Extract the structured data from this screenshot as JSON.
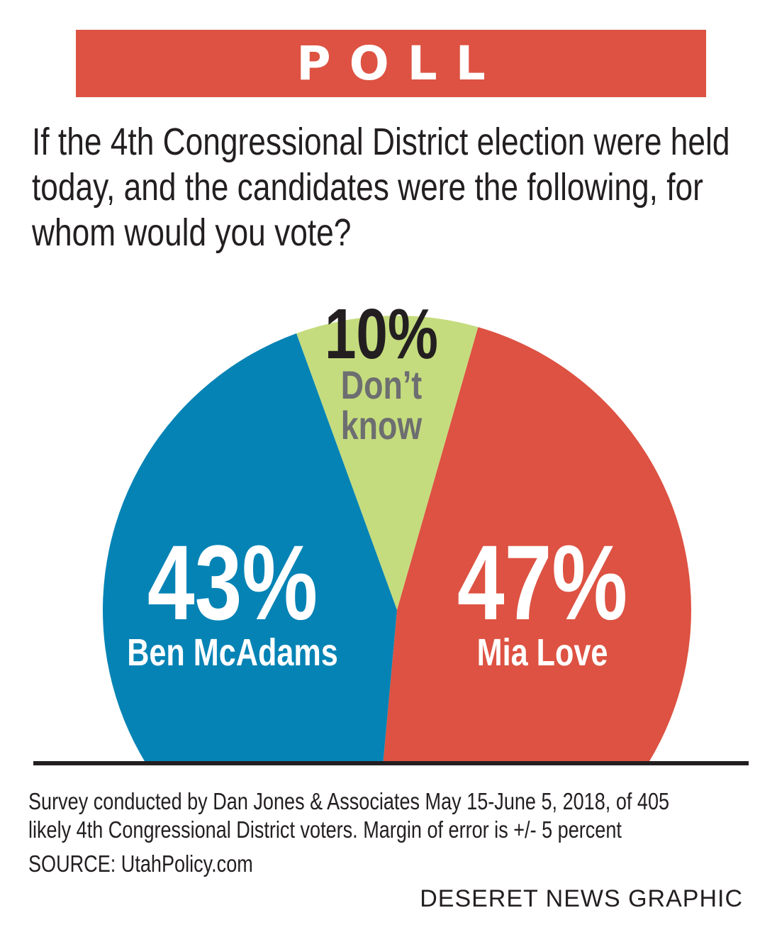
{
  "banner": {
    "text": "POLL"
  },
  "question": "If the 4th Congressional District election were held today, and the candidates were the following, for whom would you vote?",
  "colors": {
    "banner": "#dd5242",
    "love": "#dd5242",
    "mcadams": "#0583b5",
    "dont_know": "#c5dc7e"
  },
  "chart_data": {
    "type": "pie",
    "title": "If the 4th Congressional District election were held today, and the candidates were the following, for whom would you vote?",
    "slices": [
      {
        "label": "Mia Love",
        "value": 47,
        "pct_label": "47%",
        "color": "#dd5242"
      },
      {
        "label": "Ben McAdams",
        "value": 43,
        "pct_label": "43%",
        "color": "#0583b5"
      },
      {
        "label": "Don’t know",
        "value": 10,
        "pct_label": "10%",
        "color": "#c5dc7e"
      }
    ],
    "unit": "%"
  },
  "footnote": {
    "survey_line1": "Survey conducted by Dan Jones & Associates May 15-June 5, 2018, of 405",
    "survey_line2": "likely 4th Congressional District voters. Margin of error is +/- 5 percent",
    "source": "SOURCE: UtahPolicy.com",
    "credit": "DESERET NEWS GRAPHIC"
  }
}
